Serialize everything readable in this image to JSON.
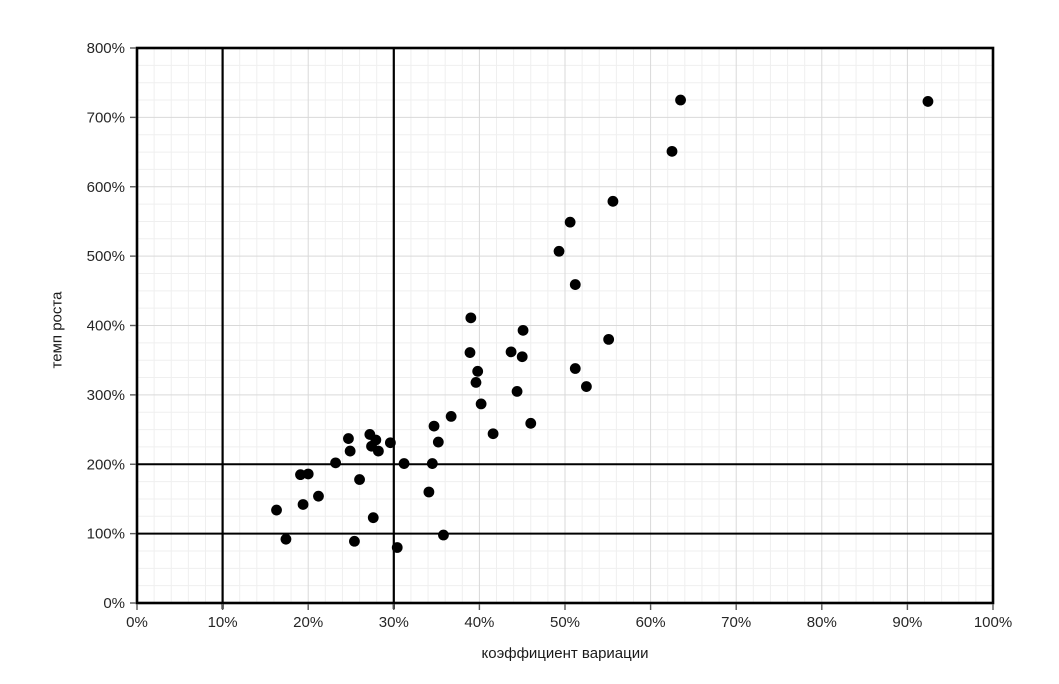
{
  "chart_data": {
    "type": "scatter",
    "title": "",
    "xlabel": "коэффициент вариации",
    "ylabel": "темп роста",
    "xlim": [
      0,
      100
    ],
    "ylim": [
      0,
      800
    ],
    "x_ticks": {
      "values": [
        0,
        10,
        20,
        30,
        40,
        50,
        60,
        70,
        80,
        90,
        100
      ],
      "labels": [
        "0%",
        "10%",
        "20%",
        "30%",
        "40%",
        "50%",
        "60%",
        "70%",
        "80%",
        "90%",
        "100%"
      ]
    },
    "y_ticks": {
      "values": [
        0,
        100,
        200,
        300,
        400,
        500,
        600,
        700,
        800
      ],
      "labels": [
        "0%",
        "100%",
        "200%",
        "300%",
        "400%",
        "500%",
        "600%",
        "700%",
        "800%"
      ]
    },
    "minor_grid": {
      "x_step": 2,
      "y_step": 25
    },
    "grid": true,
    "legend": "none",
    "reference_lines": {
      "vertical_x": [
        10,
        30
      ],
      "horizontal_y": [
        100,
        200
      ]
    },
    "series": [
      {
        "name": "points",
        "marker": "circle",
        "points": [
          [
            16.3,
            134
          ],
          [
            17.4,
            92
          ],
          [
            19.1,
            185
          ],
          [
            20.0,
            186
          ],
          [
            19.4,
            142
          ],
          [
            21.2,
            154
          ],
          [
            23.2,
            202
          ],
          [
            24.7,
            237
          ],
          [
            24.9,
            219
          ],
          [
            25.4,
            89
          ],
          [
            26.0,
            178
          ],
          [
            27.2,
            243
          ],
          [
            27.9,
            235
          ],
          [
            27.4,
            226
          ],
          [
            28.2,
            219
          ],
          [
            29.6,
            231
          ],
          [
            27.6,
            123
          ],
          [
            30.4,
            80
          ],
          [
            31.2,
            201
          ],
          [
            34.5,
            201
          ],
          [
            34.1,
            160
          ],
          [
            35.8,
            98
          ],
          [
            35.2,
            232
          ],
          [
            34.7,
            255
          ],
          [
            36.7,
            269
          ],
          [
            39.0,
            411
          ],
          [
            38.9,
            361
          ],
          [
            39.8,
            334
          ],
          [
            39.6,
            318
          ],
          [
            40.2,
            287
          ],
          [
            41.6,
            244
          ],
          [
            43.7,
            362
          ],
          [
            44.4,
            305
          ],
          [
            45.0,
            355
          ],
          [
            45.1,
            393
          ],
          [
            46.0,
            259
          ],
          [
            49.3,
            507
          ],
          [
            50.6,
            549
          ],
          [
            51.2,
            459
          ],
          [
            51.2,
            338
          ],
          [
            52.5,
            312
          ],
          [
            55.6,
            579
          ],
          [
            55.1,
            380
          ],
          [
            62.5,
            651
          ],
          [
            63.5,
            725
          ],
          [
            92.4,
            723
          ]
        ]
      }
    ],
    "colors": {
      "point": "#000000",
      "major_grid": "#d9d9d9",
      "minor_grid": "#efefef",
      "border": "#000000",
      "reference_line": "#000000",
      "tick_mark": "#595959",
      "tick_text": "#262626"
    }
  }
}
